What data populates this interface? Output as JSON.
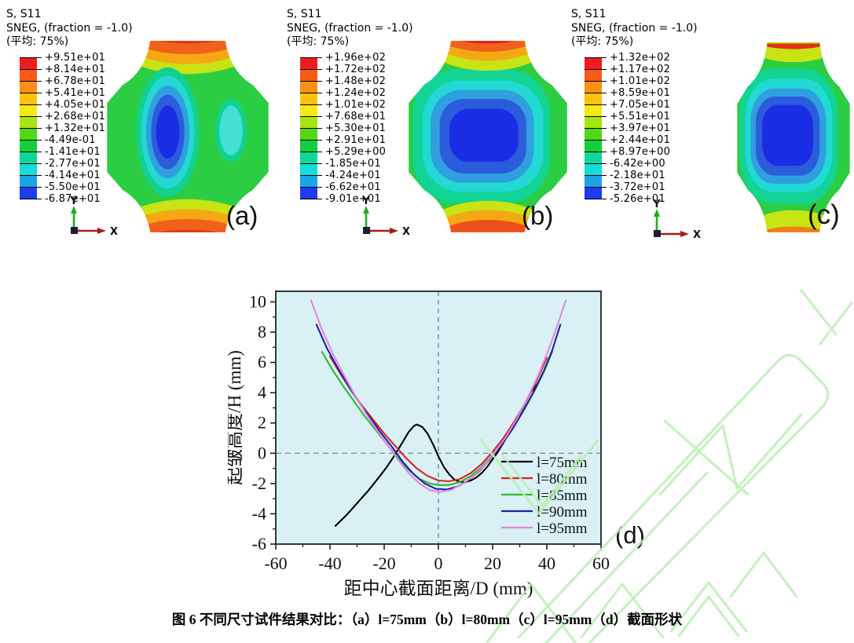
{
  "figure": {
    "caption": "图 6 不同尺寸试件结果对比：（a）l=75mm（b）l=80mm（c）l=95mm（d）截面形状"
  },
  "axis_triad": {
    "x": "X",
    "y": "Y"
  },
  "colorbar_colors": [
    "#ee1c1c",
    "#f65b16",
    "#f98f14",
    "#fbc20e",
    "#f2ea12",
    "#a8e414",
    "#50d816",
    "#12cf3c",
    "#0ed897",
    "#15dcd8",
    "#1ba4e8",
    "#1b3cf0"
  ],
  "contour_plots": [
    {
      "label": "(a)",
      "title_lines": [
        "S, S11",
        "SNEG, (fraction = -1.0)",
        "(平均: 75%)"
      ],
      "legend_values": [
        "+9.51e+01",
        "+8.14e+01",
        "+6.78e+01",
        "+5.41e+01",
        "+4.05e+01",
        "+2.68e+01",
        "+1.32e+01",
        "-4.49e-01",
        "-1.41e+01",
        "-2.77e+01",
        "-4.14e+01",
        "-5.50e+01",
        "-6.87e+01"
      ]
    },
    {
      "label": "(b)",
      "title_lines": [
        "S, S11",
        "SNEG, (fraction = -1.0)",
        "(平均: 75%)"
      ],
      "legend_values": [
        "+1.96e+02",
        "+1.72e+02",
        "+1.48e+02",
        "+1.24e+02",
        "+1.01e+02",
        "+7.68e+01",
        "+5.30e+01",
        "+2.91e+01",
        "+5.29e+00",
        "-1.85e+01",
        "-4.24e+01",
        "-6.62e+01",
        "-9.01e+01"
      ]
    },
    {
      "label": "(c)",
      "title_lines": [
        "S, S11",
        "SNEG, (fraction = -1.0)",
        "(平均: 75%)"
      ],
      "legend_values": [
        "+1.32e+02",
        "+1.17e+02",
        "+1.01e+02",
        "+8.59e+01",
        "+7.05e+01",
        "+5.51e+01",
        "+3.97e+01",
        "+2.44e+01",
        "+8.97e+00",
        "-6.42e+00",
        "-2.18e+01",
        "-3.72e+01",
        "-5.26e+01"
      ]
    }
  ],
  "chart_data": {
    "type": "line",
    "panel_label": "(d)",
    "xlabel": "距中心截面距离/D (mm)",
    "ylabel": "起皱高度/H (mm)",
    "xlim": [
      -60,
      60
    ],
    "ylim": [
      -6,
      10.7
    ],
    "xticks": [
      -60,
      -40,
      -20,
      0,
      20,
      40,
      60
    ],
    "yticks": [
      -6,
      -4,
      -2,
      0,
      2,
      4,
      6,
      8,
      10
    ],
    "minor_xticks": [
      -50,
      -30,
      -10,
      10,
      30,
      50
    ],
    "minor_yticks": [
      -5,
      -3,
      -1,
      1,
      3,
      5,
      7,
      9
    ],
    "grid": false,
    "background": "#d9f1f4",
    "reference_lines": {
      "vertical_x": 0,
      "horizontal_y": 0
    },
    "legend_position": "inside-right",
    "series": [
      {
        "name": "l=75mm",
        "color": "#000000",
        "points": [
          [
            -38,
            -4.8
          ],
          [
            -34,
            -4.1
          ],
          [
            -30,
            -3.3
          ],
          [
            -26,
            -2.5
          ],
          [
            -22,
            -1.6
          ],
          [
            -19,
            -0.9
          ],
          [
            -16,
            -0.1
          ],
          [
            -13,
            0.8
          ],
          [
            -11,
            1.4
          ],
          [
            -9,
            1.8
          ],
          [
            -8,
            1.9
          ],
          [
            -6,
            1.75
          ],
          [
            -4,
            1.3
          ],
          [
            -2,
            0.6
          ],
          [
            0,
            -0.2
          ],
          [
            2,
            -0.9
          ],
          [
            4,
            -1.4
          ],
          [
            6,
            -1.75
          ],
          [
            8,
            -1.9
          ],
          [
            10,
            -1.9
          ],
          [
            12,
            -1.8
          ],
          [
            14,
            -1.6
          ],
          [
            16,
            -1.3
          ],
          [
            18,
            -0.9
          ],
          [
            20,
            -0.4
          ],
          [
            22,
            0.1
          ],
          [
            24,
            0.7
          ],
          [
            26,
            1.3
          ],
          [
            28,
            1.9
          ],
          [
            30,
            2.6
          ],
          [
            32,
            3.3
          ],
          [
            34,
            4.0
          ],
          [
            37,
            4.7
          ]
        ]
      },
      {
        "name": "l=80mm",
        "color": "#d42525",
        "points": [
          [
            -40,
            6.4
          ],
          [
            -36,
            5.2
          ],
          [
            -32,
            4.1
          ],
          [
            -28,
            3.1
          ],
          [
            -24,
            2.2
          ],
          [
            -20,
            1.3
          ],
          [
            -16,
            0.5
          ],
          [
            -12,
            -0.3
          ],
          [
            -8,
            -1.0
          ],
          [
            -4,
            -1.5
          ],
          [
            0,
            -1.8
          ],
          [
            4,
            -1.85
          ],
          [
            8,
            -1.7
          ],
          [
            12,
            -1.3
          ],
          [
            16,
            -0.7
          ],
          [
            20,
            0.1
          ],
          [
            24,
            1.0
          ],
          [
            28,
            2.1
          ],
          [
            32,
            3.3
          ],
          [
            36,
            4.7
          ],
          [
            40,
            6.3
          ]
        ]
      },
      {
        "name": "l=85mm",
        "color": "#2eb92e",
        "points": [
          [
            -43,
            6.7
          ],
          [
            -39,
            5.5
          ],
          [
            -35,
            4.4
          ],
          [
            -31,
            3.4
          ],
          [
            -27,
            2.4
          ],
          [
            -23,
            1.5
          ],
          [
            -19,
            0.6
          ],
          [
            -15,
            -0.3
          ],
          [
            -11,
            -1.1
          ],
          [
            -7,
            -1.7
          ],
          [
            -3,
            -2.0
          ],
          [
            0,
            -2.1
          ],
          [
            4,
            -2.1
          ],
          [
            8,
            -1.9
          ],
          [
            12,
            -1.5
          ],
          [
            16,
            -0.9
          ],
          [
            20,
            -0.1
          ],
          [
            24,
            0.8
          ],
          [
            28,
            1.8
          ],
          [
            32,
            3.0
          ],
          [
            36,
            4.3
          ],
          [
            39,
            5.4
          ],
          [
            42,
            6.7
          ]
        ]
      },
      {
        "name": "l=90mm",
        "color": "#2121a8",
        "points": [
          [
            -45,
            8.5
          ],
          [
            -41,
            6.9
          ],
          [
            -37,
            5.6
          ],
          [
            -33,
            4.4
          ],
          [
            -29,
            3.3
          ],
          [
            -25,
            2.3
          ],
          [
            -21,
            1.3
          ],
          [
            -17,
            0.4
          ],
          [
            -13,
            -0.6
          ],
          [
            -9,
            -1.4
          ],
          [
            -5,
            -2.0
          ],
          [
            -1,
            -2.35
          ],
          [
            3,
            -2.4
          ],
          [
            7,
            -2.2
          ],
          [
            11,
            -1.8
          ],
          [
            15,
            -1.2
          ],
          [
            19,
            -0.4
          ],
          [
            23,
            0.5
          ],
          [
            27,
            1.5
          ],
          [
            31,
            2.7
          ],
          [
            35,
            4.0
          ],
          [
            39,
            5.5
          ],
          [
            42,
            6.8
          ],
          [
            45,
            8.5
          ]
        ]
      },
      {
        "name": "l=95mm",
        "color": "#e287dd",
        "points": [
          [
            -47,
            10.1
          ],
          [
            -43,
            8.2
          ],
          [
            -39,
            6.6
          ],
          [
            -35,
            5.2
          ],
          [
            -31,
            3.9
          ],
          [
            -27,
            2.7
          ],
          [
            -23,
            1.6
          ],
          [
            -19,
            0.6
          ],
          [
            -15,
            -0.4
          ],
          [
            -11,
            -1.3
          ],
          [
            -7,
            -2.0
          ],
          [
            -3,
            -2.45
          ],
          [
            1,
            -2.55
          ],
          [
            5,
            -2.4
          ],
          [
            9,
            -2.0
          ],
          [
            13,
            -1.5
          ],
          [
            17,
            -0.8
          ],
          [
            21,
            0.1
          ],
          [
            25,
            1.1
          ],
          [
            29,
            2.3
          ],
          [
            33,
            3.7
          ],
          [
            37,
            5.2
          ],
          [
            41,
            7.0
          ],
          [
            44,
            8.5
          ],
          [
            47,
            10.1
          ]
        ]
      }
    ]
  }
}
